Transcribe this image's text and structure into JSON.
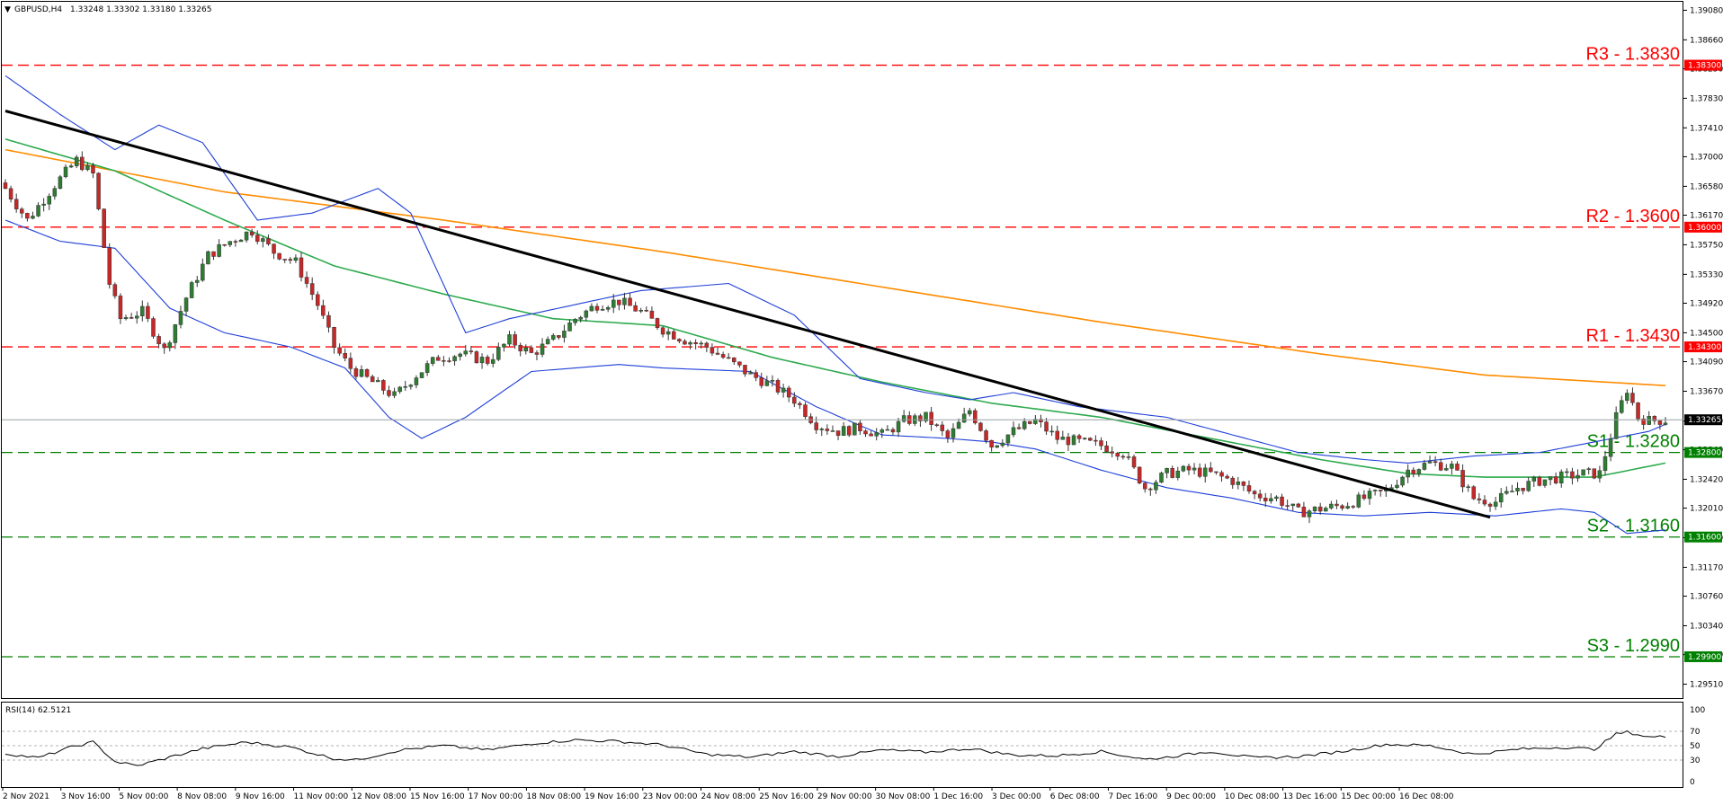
{
  "header": {
    "symbol": "GBPUSD,H4",
    "ohlc": "1.33248 1.33302 1.33180 1.33265"
  },
  "rsi_panel": {
    "label": "RSI(14) 62.5121",
    "levels": [
      "100",
      "70",
      "50",
      "30",
      "0"
    ]
  },
  "colors": {
    "bull_candle": "#2e7d32",
    "bear_candle": "#c62828",
    "ma_200": "#ff8c00",
    "ma_50": "#2eaa4e",
    "bollinger": "#1f3fd8",
    "trendline": "#000000",
    "resistance": "#ff0000",
    "support": "#008000"
  },
  "chart_data": [
    {
      "type": "candlestick",
      "title": "GBPUSD,H4",
      "ylim": [
        1.293,
        1.392
      ],
      "y_ticks": [
        "1.39080",
        "1.38660",
        "1.38250",
        "1.37830",
        "1.37410",
        "1.37000",
        "1.36580",
        "1.36170",
        "1.35750",
        "1.35330",
        "1.34920",
        "1.34500",
        "1.34090",
        "1.33670",
        "1.33250",
        "1.32840",
        "1.32420",
        "1.32010",
        "1.31590",
        "1.31170",
        "1.30760",
        "1.30340",
        "1.29930",
        "1.29510"
      ],
      "x_ticks": [
        "2 Nov 2021",
        "3 Nov 16:00",
        "5 Nov 00:00",
        "8 Nov 08:00",
        "9 Nov 16:00",
        "11 Nov 00:00",
        "12 Nov 08:00",
        "15 Nov 16:00",
        "17 Nov 00:00",
        "18 Nov 08:00",
        "19 Nov 16:00",
        "23 Nov 00:00",
        "24 Nov 08:00",
        "25 Nov 16:00",
        "29 Nov 00:00",
        "30 Nov 08:00",
        "1 Dec 16:00",
        "3 Dec 00:00",
        "6 Dec 08:00",
        "7 Dec 16:00",
        "9 Dec 00:00",
        "10 Dec 08:00",
        "13 Dec 16:00",
        "15 Dec 00:00",
        "16 Dec 08:00"
      ],
      "current_price": "1.33265",
      "levels": [
        {
          "name": "R3 - 1.3830",
          "value": 1.383,
          "tag": "1.38300",
          "kind": "resistance"
        },
        {
          "name": "R2 - 1.3600",
          "value": 1.36,
          "tag": "1.36000",
          "kind": "resistance"
        },
        {
          "name": "R1 - 1.3430",
          "value": 1.343,
          "tag": "1.34300",
          "kind": "resistance"
        },
        {
          "name": "S1 - 1.3280",
          "value": 1.328,
          "tag": "1.32800",
          "kind": "support"
        },
        {
          "name": "S2 - 1.3160",
          "value": 1.316,
          "tag": "1.31600",
          "kind": "support"
        },
        {
          "name": "S3 - 1.2990",
          "value": 1.299,
          "tag": "1.29900",
          "kind": "support"
        }
      ],
      "close_path": [
        [
          0,
          1.3655
        ],
        [
          4,
          1.361
        ],
        [
          9,
          1.366
        ],
        [
          13,
          1.3695
        ],
        [
          16,
          1.3675
        ],
        [
          19,
          1.352
        ],
        [
          21,
          1.347
        ],
        [
          25,
          1.348
        ],
        [
          29,
          1.3425
        ],
        [
          33,
          1.35
        ],
        [
          37,
          1.356
        ],
        [
          41,
          1.358
        ],
        [
          45,
          1.3595
        ],
        [
          49,
          1.3565
        ],
        [
          53,
          1.355
        ],
        [
          57,
          1.349
        ],
        [
          60,
          1.343
        ],
        [
          63,
          1.34
        ],
        [
          67,
          1.338
        ],
        [
          71,
          1.336
        ],
        [
          75,
          1.339
        ],
        [
          79,
          1.3415
        ],
        [
          83,
          1.342
        ],
        [
          88,
          1.341
        ],
        [
          92,
          1.344
        ],
        [
          96,
          1.342
        ],
        [
          100,
          1.344
        ],
        [
          104,
          1.347
        ],
        [
          108,
          1.349
        ],
        [
          112,
          1.3495
        ],
        [
          116,
          1.348
        ],
        [
          120,
          1.3455
        ],
        [
          124,
          1.344
        ],
        [
          128,
          1.343
        ],
        [
          132,
          1.341
        ],
        [
          136,
          1.339
        ],
        [
          140,
          1.3375
        ],
        [
          144,
          1.3355
        ],
        [
          148,
          1.332
        ],
        [
          152,
          1.331
        ],
        [
          156,
          1.3315
        ],
        [
          160,
          1.3305
        ],
        [
          164,
          1.3325
        ],
        [
          168,
          1.333
        ],
        [
          172,
          1.33
        ],
        [
          176,
          1.334
        ],
        [
          180,
          1.329
        ],
        [
          184,
          1.331
        ],
        [
          188,
          1.3325
        ],
        [
          192,
          1.33
        ],
        [
          196,
          1.3295
        ],
        [
          200,
          1.329
        ],
        [
          204,
          1.328
        ],
        [
          208,
          1.323
        ],
        [
          212,
          1.325
        ],
        [
          216,
          1.3255
        ],
        [
          220,
          1.325
        ],
        [
          224,
          1.324
        ],
        [
          228,
          1.322
        ],
        [
          232,
          1.3215
        ],
        [
          236,
          1.3195
        ],
        [
          240,
          1.32
        ],
        [
          244,
          1.3205
        ],
        [
          248,
          1.3215
        ],
        [
          252,
          1.3225
        ],
        [
          256,
          1.3255
        ],
        [
          260,
          1.3265
        ],
        [
          264,
          1.326
        ],
        [
          268,
          1.3215
        ],
        [
          272,
          1.321
        ],
        [
          276,
          1.323
        ],
        [
          280,
          1.324
        ],
        [
          284,
          1.3245
        ],
        [
          288,
          1.325
        ],
        [
          291,
          1.325
        ],
        [
          294,
          1.333
        ],
        [
          296,
          1.337
        ],
        [
          298,
          1.333
        ],
        [
          300,
          1.3325
        ],
        [
          302,
          1.3326
        ]
      ],
      "series": [
        {
          "name": "MA(200)",
          "values": [
            [
              0,
              1.371
            ],
            [
              40,
              1.365
            ],
            [
              80,
              1.361
            ],
            [
              120,
              1.3565
            ],
            [
              160,
              1.3515
            ],
            [
              200,
              1.3465
            ],
            [
              240,
              1.342
            ],
            [
              270,
              1.339
            ],
            [
              303,
              1.3375
            ]
          ]
        },
        {
          "name": "MA(50)",
          "values": [
            [
              0,
              1.3725
            ],
            [
              20,
              1.368
            ],
            [
              40,
              1.361
            ],
            [
              60,
              1.3545
            ],
            [
              80,
              1.3505
            ],
            [
              100,
              1.347
            ],
            [
              120,
              1.346
            ],
            [
              140,
              1.3415
            ],
            [
              160,
              1.338
            ],
            [
              180,
              1.335
            ],
            [
              200,
              1.333
            ],
            [
              220,
              1.33
            ],
            [
              240,
              1.327
            ],
            [
              256,
              1.325
            ],
            [
              270,
              1.3245
            ],
            [
              282,
              1.3245
            ],
            [
              290,
              1.3245
            ],
            [
              303,
              1.3265
            ]
          ]
        },
        {
          "name": "BB upper",
          "values": [
            [
              0,
              1.3815
            ],
            [
              10,
              1.376
            ],
            [
              20,
              1.371
            ],
            [
              28,
              1.3745
            ],
            [
              36,
              1.372
            ],
            [
              46,
              1.361
            ],
            [
              56,
              1.362
            ],
            [
              68,
              1.3655
            ],
            [
              74,
              1.362
            ],
            [
              84,
              1.345
            ],
            [
              92,
              1.347
            ],
            [
              104,
              1.349
            ],
            [
              116,
              1.351
            ],
            [
              132,
              1.352
            ],
            [
              144,
              1.3475
            ],
            [
              156,
              1.3385
            ],
            [
              168,
              1.3365
            ],
            [
              176,
              1.3355
            ],
            [
              184,
              1.3365
            ],
            [
              196,
              1.3345
            ],
            [
              212,
              1.333
            ],
            [
              224,
              1.3305
            ],
            [
              236,
              1.328
            ],
            [
              248,
              1.327
            ],
            [
              256,
              1.3265
            ],
            [
              268,
              1.3275
            ],
            [
              280,
              1.328
            ],
            [
              290,
              1.3295
            ],
            [
              300,
              1.331
            ],
            [
              303,
              1.332
            ]
          ]
        },
        {
          "name": "BB lower",
          "values": [
            [
              0,
              1.361
            ],
            [
              10,
              1.358
            ],
            [
              20,
              1.357
            ],
            [
              30,
              1.3485
            ],
            [
              40,
              1.345
            ],
            [
              52,
              1.343
            ],
            [
              62,
              1.34
            ],
            [
              70,
              1.333
            ],
            [
              76,
              1.33
            ],
            [
              84,
              1.333
            ],
            [
              96,
              1.3395
            ],
            [
              112,
              1.3405
            ],
            [
              120,
              1.34
            ],
            [
              136,
              1.3395
            ],
            [
              148,
              1.3345
            ],
            [
              160,
              1.3305
            ],
            [
              172,
              1.33
            ],
            [
              180,
              1.3295
            ],
            [
              188,
              1.3285
            ],
            [
              200,
              1.3255
            ],
            [
              212,
              1.323
            ],
            [
              224,
              1.3215
            ],
            [
              236,
              1.3195
            ],
            [
              248,
              1.319
            ],
            [
              260,
              1.3195
            ],
            [
              272,
              1.319
            ],
            [
              284,
              1.32
            ],
            [
              290,
              1.3195
            ],
            [
              296,
              1.3165
            ],
            [
              303,
              1.317
            ]
          ]
        },
        {
          "name": "Trendline",
          "values": [
            [
              0,
              1.3765
            ],
            [
              271,
              1.3188
            ]
          ]
        }
      ]
    },
    {
      "type": "line",
      "title": "RSI(14) 62.5121",
      "ylim": [
        0,
        100
      ],
      "series": [
        {
          "name": "RSI(14)",
          "values": [
            [
              0,
              39
            ],
            [
              6,
              33
            ],
            [
              12,
              48
            ],
            [
              16,
              55
            ],
            [
              20,
              28
            ],
            [
              24,
              22
            ],
            [
              30,
              34
            ],
            [
              36,
              46
            ],
            [
              44,
              55
            ],
            [
              52,
              48
            ],
            [
              60,
              32
            ],
            [
              64,
              30
            ],
            [
              72,
              44
            ],
            [
              80,
              50
            ],
            [
              88,
              44
            ],
            [
              96,
              53
            ],
            [
              104,
              58
            ],
            [
              112,
              56
            ],
            [
              120,
              51
            ],
            [
              128,
              38
            ],
            [
              136,
              34
            ],
            [
              144,
              42
            ],
            [
              152,
              35
            ],
            [
              160,
              44
            ],
            [
              168,
              41
            ],
            [
              176,
              46
            ],
            [
              184,
              37
            ],
            [
              192,
              36
            ],
            [
              200,
              42
            ],
            [
              208,
              31
            ],
            [
              212,
              34
            ],
            [
              220,
              42
            ],
            [
              228,
              33
            ],
            [
              236,
              35
            ],
            [
              244,
              42
            ],
            [
              252,
              52
            ],
            [
              260,
              50
            ],
            [
              268,
              38
            ],
            [
              276,
              45
            ],
            [
              284,
              48
            ],
            [
              290,
              45
            ],
            [
              294,
              66
            ],
            [
              296,
              69
            ],
            [
              300,
              62
            ],
            [
              303,
              62.5
            ]
          ]
        }
      ]
    }
  ]
}
